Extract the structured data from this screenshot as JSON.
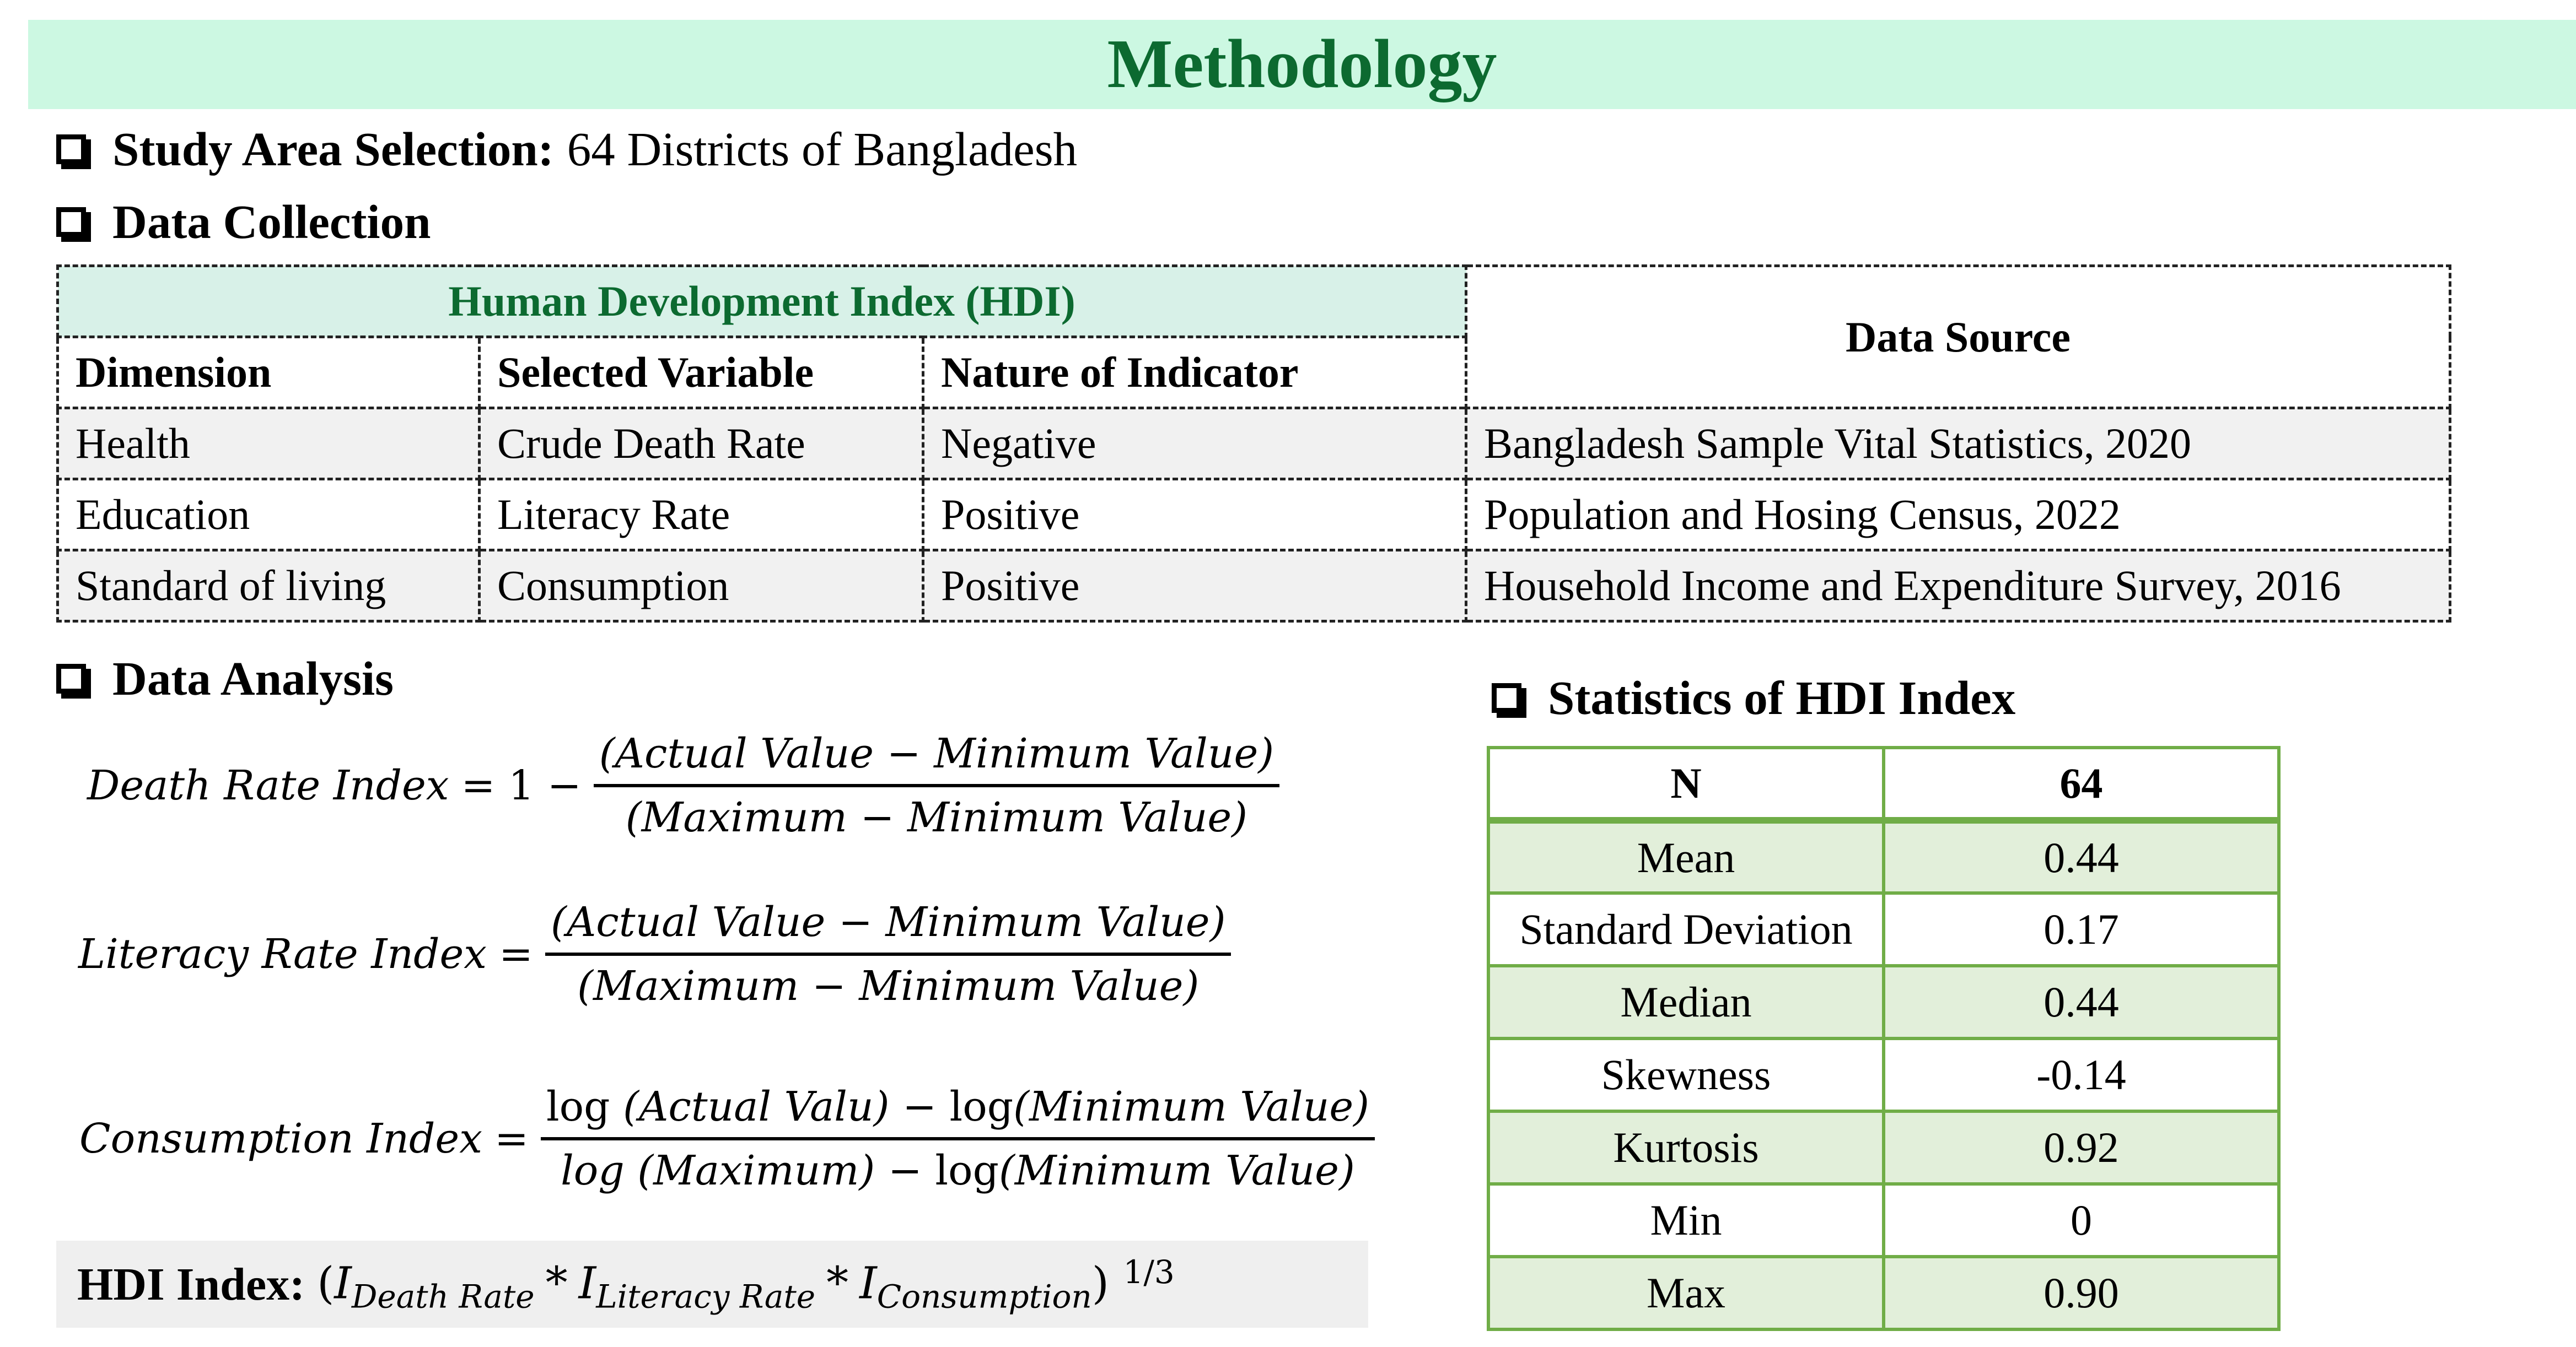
{
  "title": "Methodology",
  "study_area": {
    "label": "Study Area Selection:",
    "value": "64 Districts of Bangladesh"
  },
  "data_collection": {
    "label": "Data Collection",
    "group_header": "Human Development Index (HDI)",
    "columns": [
      "Dimension",
      "Selected Variable",
      "Nature of Indicator",
      "Data Source"
    ],
    "rows": [
      [
        "Health",
        "Crude Death Rate",
        "Negative",
        "Bangladesh Sample Vital Statistics, 2020"
      ],
      [
        "Education",
        "Literacy Rate",
        "Positive",
        "Population and Hosing Census, 2022"
      ],
      [
        "Standard of living",
        "Consumption",
        "Positive",
        "Household Income and Expenditure Survey, 2016"
      ]
    ]
  },
  "data_analysis": {
    "label": "Data Analysis",
    "formulas": {
      "death": {
        "lhs": "Death Rate Index",
        "eq": "= 1 −",
        "num": "(Actual Value − Minimum Value)",
        "den": "(Maximum  − Minimum Value)"
      },
      "literacy": {
        "lhs": "Literacy Rate Index",
        "eq": "=",
        "num": "(Actual Value − Minimum Value)",
        "den": "(Maximum  − Minimum Value)"
      },
      "consumption": {
        "lhs": "Consumption Index",
        "eq": "=",
        "num_log1": "log",
        "num_a": " (Actual Valu) − ",
        "num_log2": "log",
        "num_b": "(Minimum Value)",
        "den_a": "log (Maximum)  − ",
        "den_log": "log",
        "den_b": "(Minimum Value)"
      }
    },
    "hdi": {
      "label": "HDI Index:",
      "i": "I",
      "death_sub": "Death Rate",
      "literacy_sub": "Literacy Rate",
      "consumption_sub": "Consumption",
      "op": "*",
      "open": "(",
      "close": ")",
      "power": "1/3"
    }
  },
  "statistics": {
    "label": "Statistics of HDI Index",
    "header": [
      "N",
      "64"
    ],
    "rows": [
      [
        "Mean",
        "0.44"
      ],
      [
        "Standard Deviation",
        "0.17"
      ],
      [
        "Median",
        "0.44"
      ],
      [
        "Skewness",
        "-0.14"
      ],
      [
        "Kurtosis",
        "0.92"
      ],
      [
        "Min",
        "0"
      ],
      [
        "Max",
        "0.90"
      ]
    ]
  }
}
